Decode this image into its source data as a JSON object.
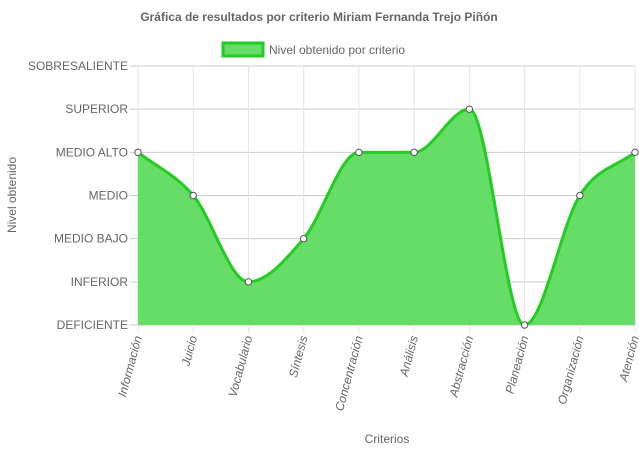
{
  "chart_data": {
    "type": "area",
    "title": "Gráfica de resultados por criterio Miriam Fernanda Trejo Piñón",
    "xlabel": "Criterios",
    "ylabel": "Nivel obtenido",
    "legend": {
      "label": "Nivel obtenido por criterio",
      "position": "top"
    },
    "levels": [
      "DEFICIENTE",
      "INFERIOR",
      "MEDIO BAJO",
      "MEDIO",
      "MEDIO ALTO",
      "SUPERIOR",
      "SOBRESALIENTE"
    ],
    "categories": [
      "Información",
      "Juicio",
      "Vocabulario",
      "Síntesis",
      "Concentración",
      "Análisis",
      "Abstracción",
      "Planeación",
      "Organización",
      "Atención"
    ],
    "series": [
      {
        "name": "Nivel obtenido por criterio",
        "values": [
          4,
          3,
          1,
          2,
          4,
          4,
          5,
          0,
          3,
          4
        ]
      }
    ],
    "ylim": [
      0,
      6
    ],
    "grid": true,
    "colors": {
      "fill": "#66dd66",
      "line": "#22cc22",
      "point_fill": "#ffffff",
      "point_stroke": "#555555"
    }
  }
}
